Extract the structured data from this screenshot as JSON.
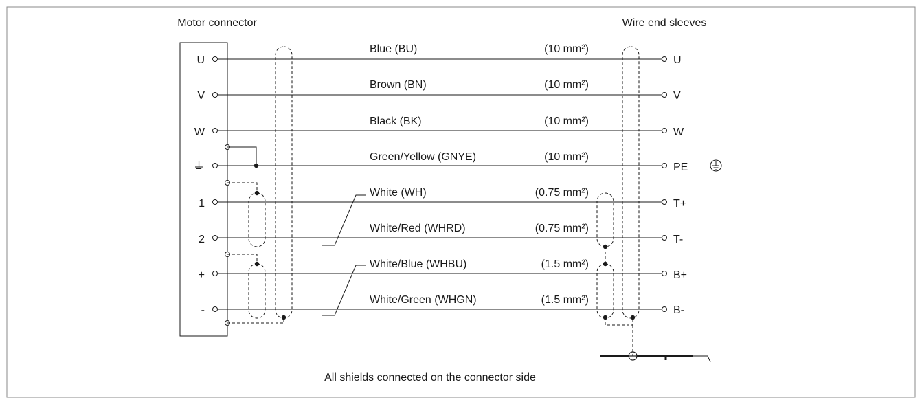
{
  "headings": {
    "left": "Motor connector",
    "right": "Wire end sleeves"
  },
  "left_pins": [
    "U",
    "V",
    "W",
    "",
    "1",
    "2",
    "+",
    "-"
  ],
  "ground_symbol": "⏚",
  "wires": [
    {
      "color": "Blue (BU)",
      "size": "(10 mm²)",
      "end": "U"
    },
    {
      "color": "Brown (BN)",
      "size": "(10 mm²)",
      "end": "V"
    },
    {
      "color": "Black (BK)",
      "size": "(10 mm²)",
      "end": "W"
    },
    {
      "color": "Green/Yellow (GNYE)",
      "size": "(10 mm²)",
      "end": "PE"
    },
    {
      "color": "White (WH)",
      "size": "(0.75 mm²)",
      "end": "T+"
    },
    {
      "color": "White/Red (WHRD)",
      "size": "(0.75 mm²)",
      "end": "T-"
    },
    {
      "color": "White/Blue (WHBU)",
      "size": "(1.5 mm²)",
      "end": "B+"
    },
    {
      "color": "White/Green (WHGN)",
      "size": "(1.5 mm²)",
      "end": "B-"
    }
  ],
  "pe_symbol": "⏚",
  "footnote": "All shields connected on the connector side",
  "colors": {
    "line": "#1a1a1a",
    "frame": "#888888",
    "background": "#ffffff"
  }
}
